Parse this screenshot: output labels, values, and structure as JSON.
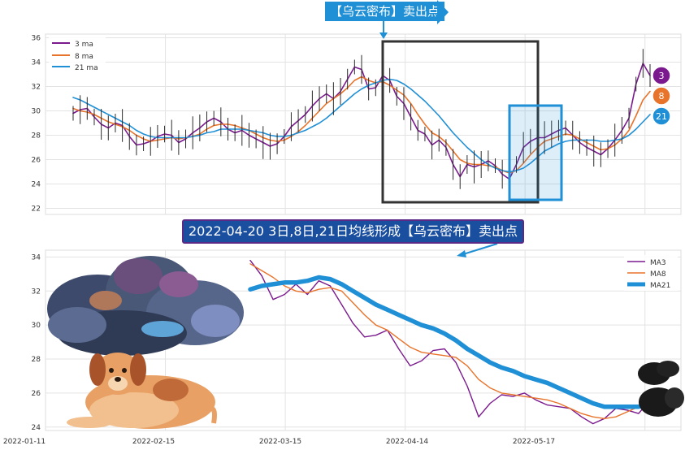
{
  "top_callout": {
    "text": "【乌云密布】卖出点"
  },
  "mid_callout": {
    "text": "2022-04-20 3日,8日,21日均线形成【乌云密布】卖出点"
  },
  "badges": [
    {
      "label": "3",
      "color": "#7b1a8e"
    },
    {
      "label": "8",
      "color": "#e8732a"
    },
    {
      "label": "21",
      "color": "#1f8fd6"
    }
  ],
  "colors": {
    "ma3": "#7b1a8e",
    "ma8": "#e8732a",
    "ma21": "#1f8fd6",
    "box_dark": "#333333",
    "highlight": "#1f8fd6"
  },
  "chart_data": [
    {
      "type": "line",
      "panel": "top",
      "legend": [
        "3 ma",
        "8 ma",
        "21 ma"
      ],
      "legend_position": "top-left",
      "ylim": [
        21.5,
        36.3
      ],
      "yticks": [
        22,
        24,
        26,
        28,
        30,
        32,
        34,
        36
      ],
      "grid": true,
      "series": [
        {
          "name": "3 ma",
          "values": [
            29.8,
            30.1,
            30.2,
            29.5,
            28.9,
            28.6,
            29.0,
            28.8,
            27.9,
            27.2,
            27.3,
            27.5,
            27.9,
            28.1,
            28.0,
            27.4,
            27.7,
            28.2,
            28.6,
            29.1,
            29.4,
            29.1,
            28.5,
            28.2,
            28.4,
            28.0,
            27.7,
            27.4,
            27.1,
            27.3,
            27.9,
            28.7,
            29.2,
            29.7,
            30.4,
            31.0,
            31.4,
            31.0,
            31.6,
            32.6,
            33.6,
            33.4,
            31.8,
            31.9,
            32.9,
            32.5,
            31.2,
            30.6,
            29.5,
            28.4,
            28.1,
            27.2,
            27.6,
            27.0,
            25.6,
            24.6,
            25.6,
            25.4,
            25.6,
            25.9,
            25.5,
            24.8,
            24.4,
            25.6,
            27.0,
            27.5,
            27.8,
            27.8,
            28.1,
            28.4,
            28.6,
            28.0,
            27.4,
            27.0,
            26.7,
            26.4,
            26.9,
            27.6,
            28.4,
            29.4,
            32.2,
            33.9,
            32.9
          ]
        },
        {
          "name": "8 ma",
          "values": [
            30.2,
            30.0,
            29.9,
            29.7,
            29.4,
            29.1,
            28.9,
            28.7,
            28.4,
            28.0,
            27.7,
            27.5,
            27.6,
            27.7,
            27.8,
            27.7,
            27.8,
            27.9,
            28.1,
            28.5,
            28.8,
            28.9,
            28.9,
            28.8,
            28.6,
            28.4,
            28.1,
            27.8,
            27.6,
            27.5,
            27.6,
            27.9,
            28.3,
            28.8,
            29.4,
            30.0,
            30.6,
            31.0,
            31.4,
            31.9,
            32.5,
            32.8,
            32.5,
            32.3,
            32.4,
            32.1,
            31.7,
            31.3,
            30.6,
            29.7,
            28.9,
            28.2,
            27.9,
            27.4,
            26.7,
            26.0,
            25.7,
            25.6,
            25.6,
            25.5,
            25.4,
            25.1,
            24.9,
            25.1,
            25.7,
            26.4,
            27.0,
            27.5,
            27.7,
            27.9,
            28.1,
            28.0,
            27.7,
            27.4,
            27.1,
            26.8,
            26.9,
            27.2,
            27.7,
            28.4,
            29.6,
            30.9,
            31.6
          ]
        },
        {
          "name": "21 ma",
          "values": [
            31.1,
            30.9,
            30.6,
            30.3,
            30.0,
            29.7,
            29.4,
            29.1,
            28.8,
            28.4,
            28.1,
            27.9,
            27.8,
            27.8,
            27.8,
            27.8,
            27.8,
            27.9,
            28.0,
            28.2,
            28.3,
            28.5,
            28.5,
            28.5,
            28.5,
            28.4,
            28.3,
            28.2,
            28.0,
            27.9,
            27.9,
            28.0,
            28.2,
            28.4,
            28.7,
            29.0,
            29.4,
            29.9,
            30.4,
            30.9,
            31.4,
            31.8,
            32.1,
            32.3,
            32.5,
            32.6,
            32.5,
            32.2,
            31.8,
            31.3,
            30.8,
            30.2,
            29.6,
            28.9,
            28.2,
            27.6,
            27.0,
            26.5,
            26.0,
            25.6,
            25.3,
            25.1,
            25.0,
            25.1,
            25.3,
            25.7,
            26.2,
            26.7,
            27.0,
            27.3,
            27.5,
            27.6,
            27.6,
            27.6,
            27.6,
            27.5,
            27.5,
            27.6,
            27.7,
            28.0,
            28.5,
            29.1,
            29.7
          ]
        }
      ]
    },
    {
      "type": "line",
      "panel": "bottom",
      "legend": [
        "MA3",
        "MA8",
        "MA21"
      ],
      "legend_position": "top-right",
      "x_tick_labels": [
        "2022-01-11",
        "2022-02-15",
        "2022-03-15",
        "2022-04-14",
        "2022-05-17"
      ],
      "ylim": [
        23.8,
        34.4
      ],
      "yticks": [
        24,
        26,
        28,
        30,
        32,
        34
      ],
      "grid": true,
      "x_range": [
        0,
        37
      ],
      "series": [
        {
          "name": "MA3",
          "values": [
            33.8,
            32.9,
            31.5,
            31.8,
            32.4,
            31.8,
            32.6,
            32.3,
            31.2,
            30.1,
            29.3,
            29.4,
            29.7,
            28.6,
            27.6,
            27.9,
            28.5,
            28.6,
            27.8,
            26.4,
            24.6,
            25.4,
            25.9,
            25.8,
            26.0,
            25.6,
            25.3,
            25.2,
            25.1,
            24.6,
            24.2,
            24.5,
            25.1,
            25.0,
            24.8,
            25.6
          ]
        },
        {
          "name": "MA8",
          "values": [
            33.6,
            33.2,
            32.8,
            32.3,
            32.0,
            31.9,
            32.1,
            32.2,
            32.0,
            31.3,
            30.6,
            30.0,
            29.7,
            29.2,
            28.7,
            28.4,
            28.3,
            28.2,
            28.1,
            27.6,
            26.8,
            26.3,
            26.0,
            25.9,
            25.8,
            25.7,
            25.6,
            25.4,
            25.1,
            24.8,
            24.6,
            24.5,
            24.6,
            24.9,
            25.2,
            25.6
          ]
        },
        {
          "name": "MA21",
          "values": [
            32.1,
            32.3,
            32.4,
            32.5,
            32.5,
            32.6,
            32.8,
            32.7,
            32.4,
            32.0,
            31.6,
            31.2,
            30.9,
            30.6,
            30.3,
            30.0,
            29.8,
            29.5,
            29.1,
            28.6,
            28.2,
            27.8,
            27.5,
            27.3,
            27.0,
            26.8,
            26.6,
            26.3,
            26.0,
            25.7,
            25.4,
            25.2,
            25.2,
            25.2,
            25.2,
            25.3
          ]
        }
      ]
    }
  ]
}
